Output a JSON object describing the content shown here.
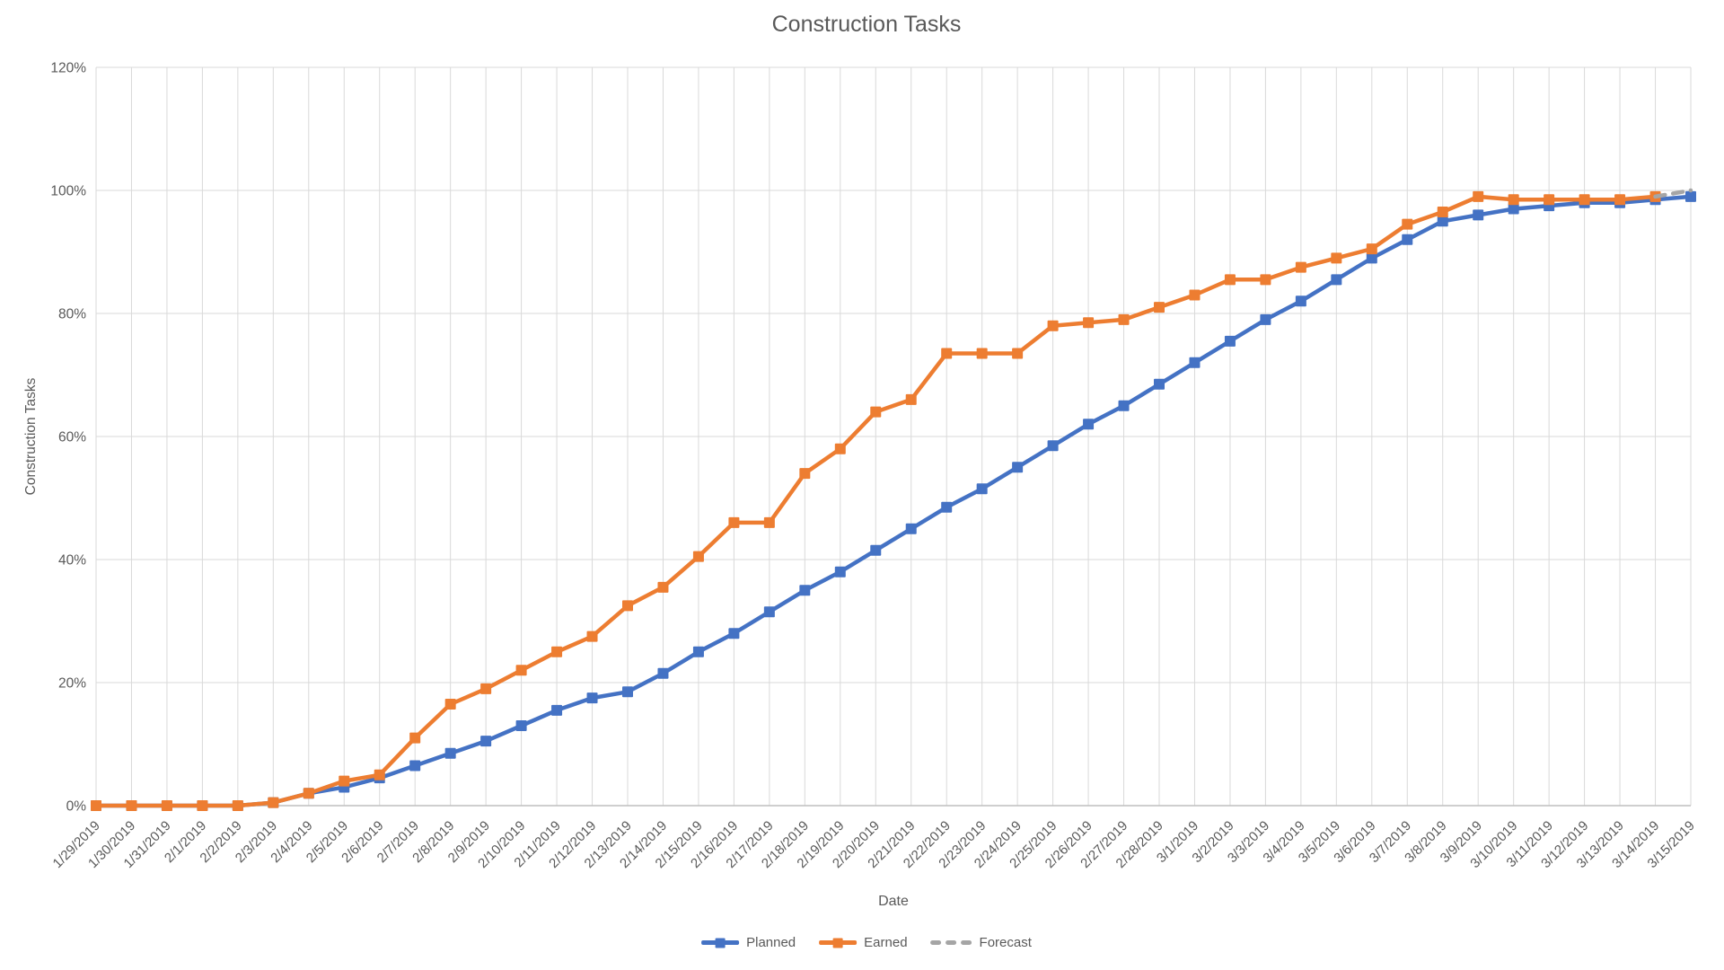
{
  "chart_data": {
    "type": "line",
    "title": "Construction Tasks",
    "xlabel": "Date",
    "ylabel": "Construction Tasks",
    "legend_position": "bottom",
    "grid": true,
    "ylim": [
      0,
      120
    ],
    "yticks": {
      "values": [
        0,
        20,
        40,
        60,
        80,
        100,
        120
      ],
      "labels": [
        "0%",
        "20%",
        "40%",
        "60%",
        "80%",
        "100%",
        "120%"
      ]
    },
    "x": [
      "1/29/2019",
      "1/30/2019",
      "1/31/2019",
      "2/1/2019",
      "2/2/2019",
      "2/3/2019",
      "2/4/2019",
      "2/5/2019",
      "2/6/2019",
      "2/7/2019",
      "2/8/2019",
      "2/9/2019",
      "2/10/2019",
      "2/11/2019",
      "2/12/2019",
      "2/13/2019",
      "2/14/2019",
      "2/15/2019",
      "2/16/2019",
      "2/17/2019",
      "2/18/2019",
      "2/19/2019",
      "2/20/2019",
      "2/21/2019",
      "2/22/2019",
      "2/23/2019",
      "2/24/2019",
      "2/25/2019",
      "2/26/2019",
      "2/27/2019",
      "2/28/2019",
      "3/1/2019",
      "3/2/2019",
      "3/3/2019",
      "3/4/2019",
      "3/5/2019",
      "3/6/2019",
      "3/7/2019",
      "3/8/2019",
      "3/9/2019",
      "3/10/2019",
      "3/11/2019",
      "3/12/2019",
      "3/13/2019",
      "3/14/2019",
      "3/15/2019"
    ],
    "series": [
      {
        "name": "Planned",
        "color": "#4472C4",
        "style": "solid",
        "marker": "square",
        "values": [
          0,
          0,
          0,
          0,
          0,
          0.5,
          2,
          3,
          4.5,
          6.5,
          8.5,
          10.5,
          13,
          15.5,
          17.5,
          18.5,
          21.5,
          25,
          28,
          31.5,
          35,
          38,
          41.5,
          45,
          48.5,
          51.5,
          55,
          58.5,
          62,
          65,
          68.5,
          72,
          75.5,
          79,
          82,
          85.5,
          89,
          92,
          95,
          96,
          97,
          97.5,
          98,
          98,
          98.5,
          99
        ]
      },
      {
        "name": "Earned",
        "color": "#ED7D31",
        "style": "solid",
        "marker": "square",
        "values": [
          0,
          0,
          0,
          0,
          0,
          0.5,
          2,
          4,
          5,
          11,
          16.5,
          19,
          22,
          25,
          27.5,
          32.5,
          35.5,
          40.5,
          46,
          46,
          54,
          58,
          64,
          66,
          73.5,
          73.5,
          73.5,
          78,
          78.5,
          79,
          81,
          83,
          85.5,
          85.5,
          87.5,
          89,
          90.5,
          94.5,
          96.5,
          99,
          98.5,
          98.5,
          98.5,
          98.5,
          99,
          null
        ]
      },
      {
        "name": "Forecast",
        "color": "#A5A5A5",
        "style": "dashed",
        "marker": "none",
        "values": [
          null,
          null,
          null,
          null,
          null,
          null,
          null,
          null,
          null,
          null,
          null,
          null,
          null,
          null,
          null,
          null,
          null,
          null,
          null,
          null,
          null,
          null,
          null,
          null,
          null,
          null,
          null,
          null,
          null,
          null,
          null,
          null,
          null,
          null,
          null,
          null,
          null,
          null,
          null,
          null,
          null,
          null,
          null,
          null,
          99,
          100
        ]
      }
    ]
  },
  "colors": {
    "text": "#595959",
    "gridline": "#D9D9D9",
    "axis_line": "#BFBFBF",
    "background": "#FFFFFF"
  }
}
